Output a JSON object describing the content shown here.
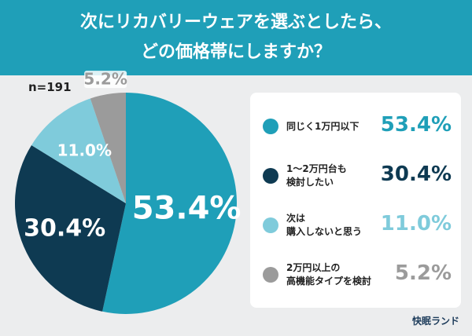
{
  "chart_data": {
    "type": "pie",
    "title": "次にリカバリーウェアを選ぶとしたら、\nどの価格帯にしますか？",
    "annotation": "n=191",
    "source": "快眠ランド",
    "categories": [
      "同じく1万円以下",
      "1〜2万円台も\n検討したい",
      "次は\n購入しないと思う",
      "2万円以上の\n高機能タイプを検討"
    ],
    "values": [
      53.4,
      30.4,
      11.0,
      5.2
    ],
    "value_labels": [
      "53.4%",
      "30.4%",
      "11.0%",
      "5.2%"
    ],
    "colors": [
      "#1f9fb8",
      "#0e3a52",
      "#7fcbdb",
      "#9b9b9b"
    ]
  }
}
